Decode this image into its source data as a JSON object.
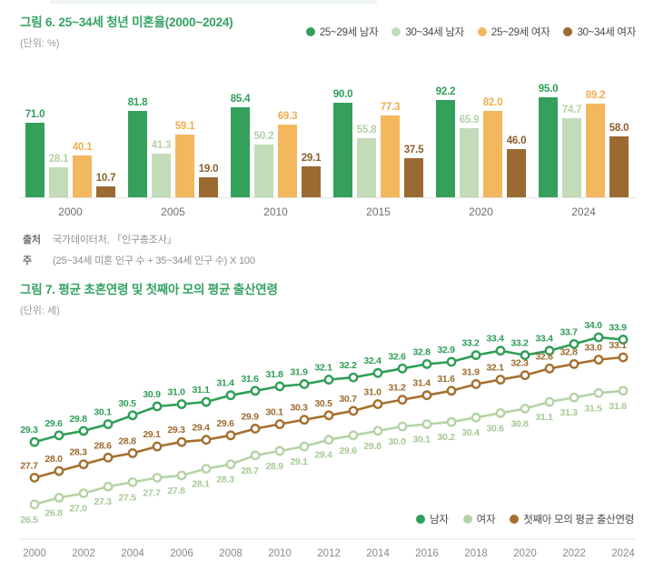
{
  "chart1": {
    "title": "그림 6. 25~34세 청년 미혼율(2000~2024)",
    "unit": "(단위: %)",
    "legend": [
      {
        "label": "25~29세 남자",
        "color": "#35a05c"
      },
      {
        "label": "30~34세 남자",
        "color": "#c2dbb8"
      },
      {
        "label": "25~29세 여자",
        "color": "#f3b75e"
      },
      {
        "label": "30~34세 여자",
        "color": "#9a6a32"
      }
    ],
    "source_label": "출처",
    "source_text": "국가데이터처, 「인구총조사」",
    "note_label": "주",
    "note_text": "(25~34세 미혼 인구 수 + 35~34세 인구 수) X 100",
    "chart_data": {
      "type": "bar",
      "categories": [
        "2000",
        "2005",
        "2010",
        "2015",
        "2020",
        "2024"
      ],
      "series": [
        {
          "name": "25~29세 남자",
          "color": "#35a05c",
          "label_color": "#2f9e57",
          "values": [
            71.0,
            81.8,
            85.4,
            90.0,
            92.2,
            95.0
          ]
        },
        {
          "name": "30~34세 남자",
          "color": "#c2dbb8",
          "label_color": "#b2d0a6",
          "values": [
            28.1,
            41.3,
            50.2,
            55.8,
            65.9,
            74.7
          ]
        },
        {
          "name": "25~29세 여자",
          "color": "#f3b75e",
          "label_color": "#f0ad4e",
          "values": [
            40.1,
            59.1,
            69.3,
            77.3,
            82.0,
            89.2
          ]
        },
        {
          "name": "30~34세 여자",
          "color": "#9a6a32",
          "label_color": "#8a5f2e",
          "values": [
            10.7,
            19.0,
            29.1,
            37.5,
            46.0,
            58.0
          ]
        }
      ],
      "ylim": [
        0,
        100
      ],
      "title": "25~34세 청년 미혼율(2000~2024)",
      "ylabel": "%"
    }
  },
  "chart2": {
    "title": "그림 7. 평균 초혼연령 및 첫째아 모의 평균 출산연령",
    "unit": "(단위: 세)",
    "legend": [
      {
        "label": "남자",
        "color": "#2f9e57"
      },
      {
        "label": "여자",
        "color": "#b5d3a6"
      },
      {
        "label": "첫째아 모의 평균 출산연령",
        "color": "#a5702f"
      }
    ],
    "chart_data": {
      "type": "line",
      "x": [
        2000,
        2001,
        2002,
        2003,
        2004,
        2005,
        2006,
        2007,
        2008,
        2009,
        2010,
        2011,
        2012,
        2013,
        2014,
        2015,
        2016,
        2017,
        2018,
        2019,
        2020,
        2021,
        2022,
        2023,
        2024
      ],
      "x_tick_labels": [
        "2000",
        "2002",
        "2004",
        "2006",
        "2008",
        "2010",
        "2012",
        "2014",
        "2016",
        "2018",
        "2020",
        "2022",
        "2024"
      ],
      "series": [
        {
          "name": "남자",
          "color": "#2f9e57",
          "label_color": "#2f9e57",
          "label_position": "above",
          "values": [
            29.3,
            29.6,
            29.8,
            30.1,
            30.5,
            30.9,
            31.0,
            31.1,
            31.4,
            31.6,
            31.8,
            31.9,
            32.1,
            32.2,
            32.4,
            32.6,
            32.8,
            32.9,
            33.2,
            33.4,
            33.2,
            33.4,
            33.7,
            34.0,
            33.9
          ]
        },
        {
          "name": "첫째아 모의 평균 출산연령",
          "color": "#a5702f",
          "label_color": "#9c6a2e",
          "label_position": "above",
          "values": [
            27.7,
            28.0,
            28.3,
            28.6,
            28.8,
            29.1,
            29.3,
            29.4,
            29.6,
            29.9,
            30.1,
            30.3,
            30.5,
            30.7,
            31.0,
            31.2,
            31.4,
            31.6,
            31.9,
            32.1,
            32.3,
            32.6,
            32.8,
            33.0,
            33.1
          ]
        },
        {
          "name": "여자",
          "color": "#b5d3a6",
          "label_color": "#a6ca96",
          "label_position": "below",
          "values": [
            26.5,
            26.8,
            27.0,
            27.3,
            27.5,
            27.7,
            27.8,
            28.1,
            28.3,
            28.7,
            28.9,
            29.1,
            29.4,
            29.6,
            29.8,
            30.0,
            30.1,
            30.2,
            30.4,
            30.6,
            30.8,
            31.1,
            31.3,
            31.5,
            31.6
          ]
        }
      ],
      "ylim": [
        26,
        34.5
      ],
      "title": "평균 초혼연령 및 첫째아 모의 평균 출산연령",
      "ylabel": "세"
    }
  }
}
